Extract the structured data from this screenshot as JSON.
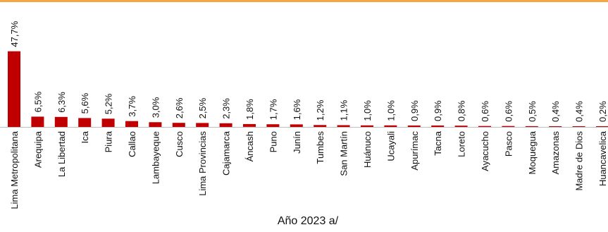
{
  "colors": {
    "bar": "#c00000",
    "top_rule": "#f5a742",
    "axis": "#bfbfbf"
  },
  "chart_data": {
    "type": "bar",
    "xlabel": "Año 2023 a/",
    "categories": [
      "Lima Metropolitana",
      "Arequipa",
      "La Libertad",
      "Ica",
      "Piura",
      "Callao",
      "Lambayeque",
      "Cusco",
      "Lima Provincias",
      "Cajamarca",
      "Áncash",
      "Puno",
      "Junín",
      "Tumbes",
      "San Martín",
      "Huánuco",
      "Ucayali",
      "Apurímac",
      "Tacna",
      "Loreto",
      "Ayacucho",
      "Pasco",
      "Moquegua",
      "Amazonas",
      "Madre de Dios",
      "Huancavelica"
    ],
    "values": [
      47.7,
      6.5,
      6.3,
      5.6,
      5.2,
      3.7,
      3.0,
      2.6,
      2.5,
      2.3,
      1.8,
      1.7,
      1.6,
      1.2,
      1.1,
      1.0,
      1.0,
      0.9,
      0.9,
      0.8,
      0.6,
      0.6,
      0.5,
      0.4,
      0.4,
      0.2
    ],
    "value_labels": [
      "47,7%",
      "6,5%",
      "6,3%",
      "5,6%",
      "5,2%",
      "3,7%",
      "3,0%",
      "2,6%",
      "2,5%",
      "2,3%",
      "1,8%",
      "1,7%",
      "1,6%",
      "1,2%",
      "1,1%",
      "1,0%",
      "1,0%",
      "0,9%",
      "0,9%",
      "0,8%",
      "0,6%",
      "0,6%",
      "0,5%",
      "0,4%",
      "0,4%",
      "0,2%"
    ],
    "ylim": [
      0,
      48
    ],
    "grid": false,
    "legend": "none"
  }
}
